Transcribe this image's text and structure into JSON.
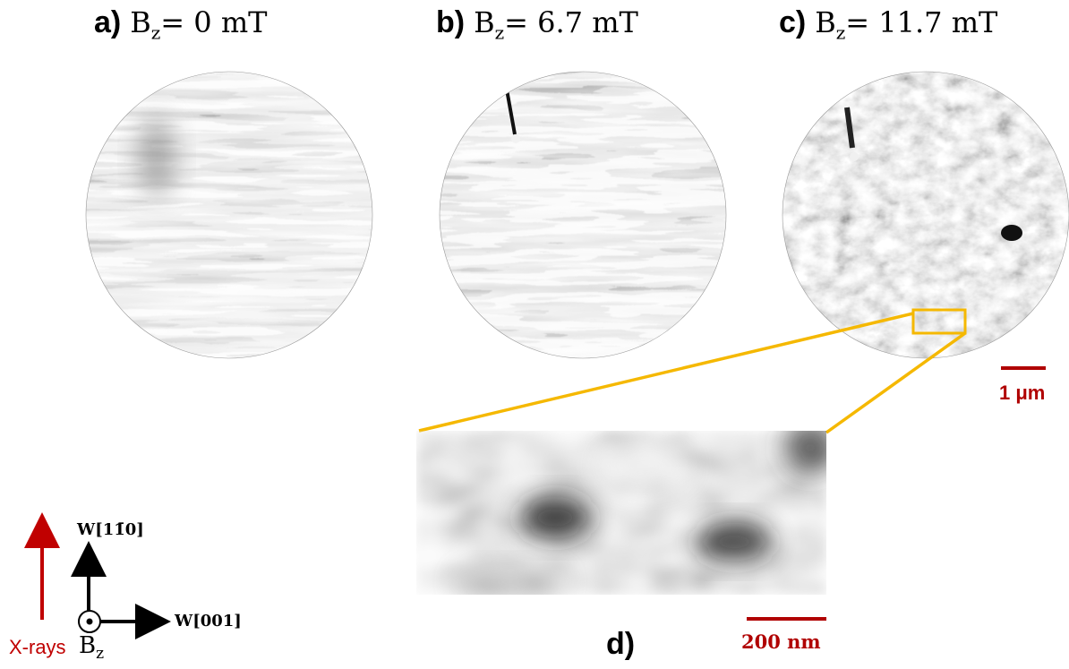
{
  "panels": {
    "a": {
      "letter": "a)",
      "field_base": "B",
      "field_sub": "z",
      "field_value": "= 0 mT"
    },
    "b": {
      "letter": "b)",
      "field_base": "B",
      "field_sub": "z",
      "field_value": "= 6.7 mT"
    },
    "c": {
      "letter": "c)",
      "field_base": "B",
      "field_sub": "z",
      "field_value": "= 11.7 mT"
    },
    "d": {
      "letter": "d)"
    }
  },
  "scalebars": {
    "main": "1 μm",
    "zoom": "200 nm"
  },
  "axes": {
    "xrays": "X-rays",
    "vertical": "W[11̄0]",
    "horizontal": "W[001]",
    "field_base": "B",
    "field_sub": "z"
  },
  "colors": {
    "scalebar": "#b00000",
    "xray_arrow": "#c00000",
    "zoom_box": "#f5b800"
  }
}
